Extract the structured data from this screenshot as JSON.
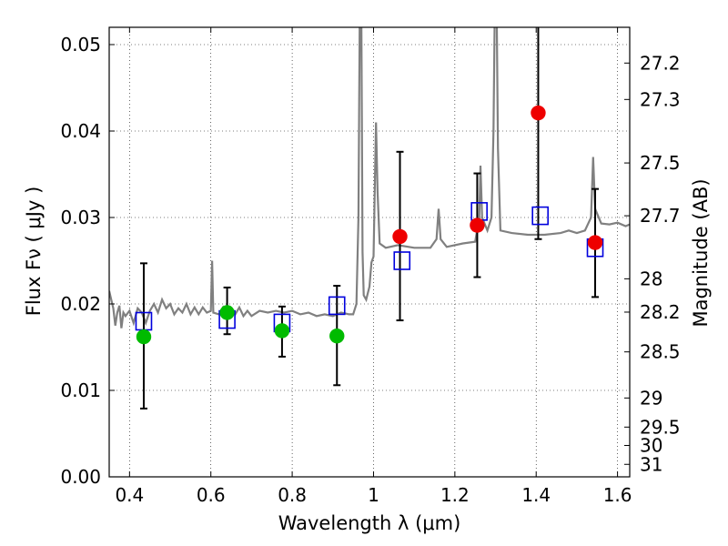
{
  "chart_data": {
    "type": "scatter",
    "xlabel": "Wavelength  λ (μm)",
    "ylabel": "Flux  Fν  ( μJy )",
    "y2label": "Magnitude (AB)",
    "xlim": [
      0.35,
      1.63
    ],
    "ylim": [
      0.0,
      0.052
    ],
    "grid": true,
    "x_ticks": [
      {
        "value": 0.4,
        "label": "0.4"
      },
      {
        "value": 0.6,
        "label": "0.6"
      },
      {
        "value": 0.8,
        "label": "0.8"
      },
      {
        "value": 1.0,
        "label": "1"
      },
      {
        "value": 1.2,
        "label": "1.2"
      },
      {
        "value": 1.4,
        "label": "1.4"
      },
      {
        "value": 1.6,
        "label": "1.6"
      }
    ],
    "y_ticks": [
      {
        "value": 0.0,
        "label": "0.00"
      },
      {
        "value": 0.01,
        "label": "0.01"
      },
      {
        "value": 0.02,
        "label": "0.02"
      },
      {
        "value": 0.03,
        "label": "0.03"
      },
      {
        "value": 0.04,
        "label": "0.04"
      },
      {
        "value": 0.05,
        "label": "0.05"
      }
    ],
    "mag_ticks": [
      {
        "mag": 27.2,
        "label": "27.2"
      },
      {
        "mag": 27.3,
        "label": "27.3"
      },
      {
        "mag": 27.5,
        "label": "27.5"
      },
      {
        "mag": 27.7,
        "label": "27.7"
      },
      {
        "mag": 28.0,
        "label": "28"
      },
      {
        "mag": 28.2,
        "label": "28.2"
      },
      {
        "mag": 28.5,
        "label": "28.5"
      },
      {
        "mag": 29.0,
        "label": "29"
      },
      {
        "mag": 29.5,
        "label": "29.5"
      },
      {
        "mag": 30.0,
        "label": "30"
      },
      {
        "mag": 31.0,
        "label": "31"
      }
    ],
    "series": [
      {
        "kind": "model-spectrum-line",
        "color": "#808080",
        "points": [
          [
            0.35,
            0.0215
          ],
          [
            0.36,
            0.0195
          ],
          [
            0.365,
            0.0175
          ],
          [
            0.37,
            0.019
          ],
          [
            0.375,
            0.0198
          ],
          [
            0.38,
            0.0172
          ],
          [
            0.385,
            0.019
          ],
          [
            0.39,
            0.0186
          ],
          [
            0.4,
            0.0192
          ],
          [
            0.41,
            0.0178
          ],
          [
            0.42,
            0.0195
          ],
          [
            0.43,
            0.019
          ],
          [
            0.44,
            0.0178
          ],
          [
            0.45,
            0.0192
          ],
          [
            0.46,
            0.02
          ],
          [
            0.47,
            0.019
          ],
          [
            0.48,
            0.0205
          ],
          [
            0.49,
            0.0195
          ],
          [
            0.5,
            0.02
          ],
          [
            0.51,
            0.0188
          ],
          [
            0.52,
            0.0195
          ],
          [
            0.53,
            0.019
          ],
          [
            0.54,
            0.02
          ],
          [
            0.55,
            0.0188
          ],
          [
            0.56,
            0.0196
          ],
          [
            0.57,
            0.0188
          ],
          [
            0.58,
            0.0196
          ],
          [
            0.59,
            0.019
          ],
          [
            0.6,
            0.0192
          ],
          [
            0.603,
            0.025
          ],
          [
            0.606,
            0.019
          ],
          [
            0.62,
            0.0188
          ],
          [
            0.63,
            0.0196
          ],
          [
            0.64,
            0.0186
          ],
          [
            0.65,
            0.0194
          ],
          [
            0.66,
            0.0188
          ],
          [
            0.67,
            0.0196
          ],
          [
            0.68,
            0.0186
          ],
          [
            0.69,
            0.0192
          ],
          [
            0.7,
            0.0186
          ],
          [
            0.72,
            0.0192
          ],
          [
            0.74,
            0.019
          ],
          [
            0.76,
            0.0192
          ],
          [
            0.78,
            0.019
          ],
          [
            0.8,
            0.0192
          ],
          [
            0.82,
            0.0188
          ],
          [
            0.84,
            0.019
          ],
          [
            0.86,
            0.0186
          ],
          [
            0.88,
            0.0188
          ],
          [
            0.9,
            0.0186
          ],
          [
            0.92,
            0.019
          ],
          [
            0.94,
            0.0188
          ],
          [
            0.95,
            0.0188
          ],
          [
            0.958,
            0.02
          ],
          [
            0.963,
            0.03
          ],
          [
            0.966,
            0.053
          ],
          [
            0.97,
            0.053
          ],
          [
            0.973,
            0.026
          ],
          [
            0.976,
            0.021
          ],
          [
            0.982,
            0.0205
          ],
          [
            0.99,
            0.022
          ],
          [
            0.995,
            0.0248
          ],
          [
            1.0,
            0.0255
          ],
          [
            1.003,
            0.033
          ],
          [
            1.006,
            0.041
          ],
          [
            1.01,
            0.033
          ],
          [
            1.015,
            0.027
          ],
          [
            1.03,
            0.0265
          ],
          [
            1.06,
            0.0268
          ],
          [
            1.1,
            0.0265
          ],
          [
            1.14,
            0.0265
          ],
          [
            1.155,
            0.0275
          ],
          [
            1.16,
            0.031
          ],
          [
            1.165,
            0.0275
          ],
          [
            1.18,
            0.0266
          ],
          [
            1.22,
            0.027
          ],
          [
            1.25,
            0.0272
          ],
          [
            1.26,
            0.03
          ],
          [
            1.263,
            0.036
          ],
          [
            1.267,
            0.03
          ],
          [
            1.28,
            0.0285
          ],
          [
            1.29,
            0.03
          ],
          [
            1.295,
            0.04
          ],
          [
            1.298,
            0.053
          ],
          [
            1.303,
            0.053
          ],
          [
            1.306,
            0.038
          ],
          [
            1.312,
            0.0285
          ],
          [
            1.34,
            0.0282
          ],
          [
            1.38,
            0.028
          ],
          [
            1.42,
            0.028
          ],
          [
            1.46,
            0.0282
          ],
          [
            1.48,
            0.0285
          ],
          [
            1.5,
            0.0282
          ],
          [
            1.52,
            0.0285
          ],
          [
            1.535,
            0.03
          ],
          [
            1.54,
            0.037
          ],
          [
            1.545,
            0.031
          ],
          [
            1.56,
            0.0293
          ],
          [
            1.58,
            0.0292
          ],
          [
            1.6,
            0.0294
          ],
          [
            1.62,
            0.029
          ],
          [
            1.63,
            0.0292
          ]
        ]
      },
      {
        "kind": "model-photometry-squares",
        "color": "#0000dd",
        "points": [
          [
            0.435,
            0.018
          ],
          [
            0.64,
            0.0182
          ],
          [
            0.775,
            0.0178
          ],
          [
            0.91,
            0.0198
          ],
          [
            1.07,
            0.025
          ],
          [
            1.26,
            0.0307
          ],
          [
            1.41,
            0.0302
          ],
          [
            1.545,
            0.0265
          ]
        ]
      },
      {
        "kind": "detection-circles",
        "color": "#00bb00",
        "points": [
          [
            0.435,
            0.0162
          ],
          [
            0.64,
            0.019
          ],
          [
            0.775,
            0.0169
          ],
          [
            0.91,
            0.0163
          ]
        ]
      },
      {
        "kind": "detection-circles",
        "color": "#ee0000",
        "points": [
          [
            1.065,
            0.0278
          ],
          [
            1.255,
            0.0291
          ],
          [
            1.405,
            0.0421
          ],
          [
            1.545,
            0.0271
          ]
        ]
      },
      {
        "kind": "error-bars",
        "color": "#000000",
        "bars": [
          {
            "x": 0.435,
            "low": 0.0079,
            "high": 0.0247
          },
          {
            "x": 0.64,
            "low": 0.0165,
            "high": 0.0219
          },
          {
            "x": 0.775,
            "low": 0.0139,
            "high": 0.0197
          },
          {
            "x": 0.91,
            "low": 0.0106,
            "high": 0.0221
          },
          {
            "x": 1.065,
            "low": 0.0181,
            "high": 0.0376
          },
          {
            "x": 1.255,
            "low": 0.0231,
            "high": 0.0351
          },
          {
            "x": 1.405,
            "low": 0.0275,
            "high": 0.053
          },
          {
            "x": 1.545,
            "low": 0.0208,
            "high": 0.0333
          }
        ]
      }
    ]
  }
}
